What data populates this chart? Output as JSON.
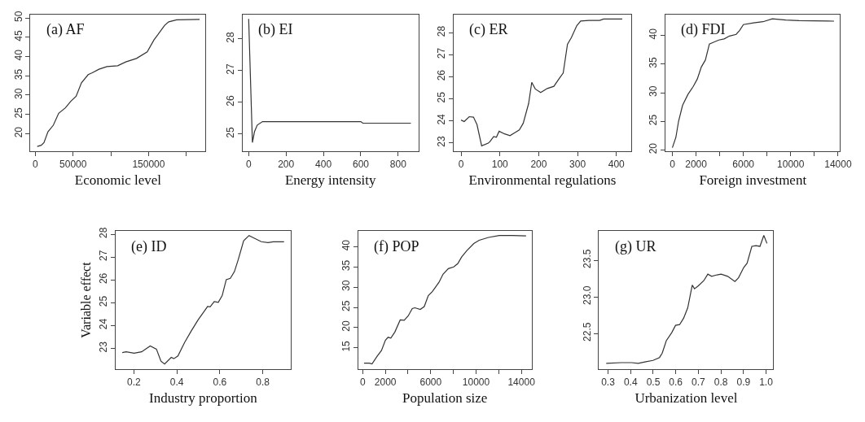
{
  "chart_data": [
    {
      "type": "line",
      "title": "(a) AF",
      "xlabel": "Economic level",
      "color": "#333333",
      "x": [
        2500,
        7800,
        11400,
        16700,
        23800,
        30900,
        39800,
        46900,
        54000,
        61100,
        70000,
        75400,
        84300,
        94900,
        109100,
        119800,
        134000,
        148200,
        157100,
        162500,
        171300,
        176700,
        187300,
        217600
      ],
      "values": [
        16.7,
        17.0,
        17.7,
        20.5,
        22.2,
        25.3,
        26.7,
        28.4,
        29.7,
        33.2,
        35.3,
        35.8,
        36.7,
        37.4,
        37.6,
        38.6,
        39.5,
        41.2,
        44.3,
        45.7,
        48.1,
        49.0,
        49.5,
        49.6
      ],
      "xlim": [
        -6400,
        225500
      ],
      "ylim": [
        15.5,
        50.9
      ],
      "xticks": [
        0,
        50000,
        {
          "value": 100000,
          "label": null
        },
        150000,
        {
          "value": 200000,
          "label": null
        }
      ],
      "yticks": [
        20,
        25,
        30,
        35,
        40,
        45,
        50
      ]
    },
    {
      "type": "line",
      "title": "(b) EI",
      "xlabel": "Energy intensity",
      "color": "#333333",
      "x": [
        0,
        20,
        31,
        46,
        74,
        600,
        611,
        868
      ],
      "values": [
        28.63,
        24.73,
        25.07,
        25.28,
        25.39,
        25.39,
        25.34,
        25.34
      ],
      "xlim": [
        -33,
        908
      ],
      "ylim": [
        24.46,
        28.77
      ],
      "xticks": [
        0,
        200,
        400,
        600,
        800
      ],
      "yticks": [
        25,
        26,
        27,
        28
      ]
    },
    {
      "type": "line",
      "title": "(c) ER",
      "xlabel": "Environmental regulations",
      "color": "#333333",
      "x": [
        0,
        8,
        21,
        32,
        41,
        53,
        70,
        74,
        84,
        91,
        98,
        112,
        126,
        139,
        150,
        160,
        174,
        182,
        191,
        205,
        222,
        239,
        253,
        263,
        274,
        284,
        298,
        308,
        329,
        357,
        367,
        415
      ],
      "values": [
        24.04,
        23.97,
        24.19,
        24.17,
        23.83,
        22.87,
        22.99,
        23.05,
        23.29,
        23.26,
        23.53,
        23.41,
        23.33,
        23.47,
        23.59,
        23.89,
        24.79,
        25.75,
        25.45,
        25.29,
        25.47,
        25.57,
        25.93,
        26.17,
        27.48,
        27.78,
        28.32,
        28.53,
        28.56,
        28.56,
        28.62,
        28.62
      ],
      "xlim": [
        -19,
        438
      ],
      "ylim": [
        22.63,
        28.83
      ],
      "xticks": [
        0,
        100,
        200,
        300,
        400
      ],
      "yticks": [
        23,
        24,
        25,
        26,
        27,
        28
      ]
    },
    {
      "type": "line",
      "title": "(d) FDI",
      "xlabel": "Foreign investment",
      "color": "#333333",
      "x": [
        0,
        295,
        521,
        861,
        1314,
        1767,
        2107,
        2447,
        2787,
        3126,
        3353,
        3919,
        4372,
        4825,
        5392,
        5686,
        6004,
        6864,
        7657,
        8450,
        9583,
        10716,
        13661
      ],
      "values": [
        20.4,
        22.2,
        25.0,
        27.8,
        29.7,
        31.1,
        32.4,
        34.5,
        35.7,
        38.5,
        38.7,
        39.2,
        39.4,
        39.9,
        40.2,
        40.9,
        41.9,
        42.2,
        42.4,
        42.9,
        42.7,
        42.6,
        42.5
      ],
      "xlim": [
        -566,
        14160
      ],
      "ylim": [
        19.81,
        43.67
      ],
      "xticks": [
        0,
        2000,
        {
          "value": 4000,
          "label": null
        },
        6000,
        {
          "value": 8000,
          "label": null
        },
        10000,
        {
          "value": 12000,
          "label": null
        },
        14000
      ],
      "yticks": [
        20,
        25,
        30,
        35,
        40
      ]
    },
    {
      "type": "line",
      "title": "(e) ID",
      "xlabel": "Industry proportion",
      "ylabel": "Variable effect",
      "color": "#333333",
      "x": [
        0.146,
        0.164,
        0.201,
        0.236,
        0.276,
        0.305,
        0.326,
        0.343,
        0.374,
        0.386,
        0.405,
        0.436,
        0.468,
        0.499,
        0.53,
        0.543,
        0.555,
        0.574,
        0.593,
        0.611,
        0.63,
        0.649,
        0.668,
        0.686,
        0.711,
        0.736,
        0.761,
        0.793,
        0.824,
        0.849,
        0.899
      ],
      "values": [
        22.82,
        22.85,
        22.79,
        22.85,
        23.11,
        22.97,
        22.44,
        22.32,
        22.61,
        22.55,
        22.67,
        23.26,
        23.78,
        24.25,
        24.66,
        24.84,
        24.82,
        25.05,
        25.02,
        25.31,
        26.01,
        26.07,
        26.36,
        26.89,
        27.71,
        27.94,
        27.82,
        27.67,
        27.63,
        27.67,
        27.67
      ],
      "xlim": [
        0.115,
        0.93
      ],
      "ylim": [
        22.09,
        28.14
      ],
      "xticks": [
        0.2,
        0.4,
        0.6,
        0.8
      ],
      "yticks": [
        23,
        24,
        25,
        26,
        27,
        28
      ]
    },
    {
      "type": "line",
      "title": "(f) POP",
      "xlabel": "Population size",
      "color": "#333333",
      "x": [
        113,
        585,
        820,
        1296,
        1650,
        2005,
        2240,
        2480,
        2835,
        3307,
        3660,
        4015,
        4370,
        4605,
        5077,
        5430,
        5785,
        6140,
        6730,
        7084,
        7556,
        8029,
        8383,
        8737,
        9210,
        9800,
        10274,
        11100,
        12046,
        13229,
        14410
      ],
      "values": [
        11.2,
        11.2,
        11.0,
        13.0,
        14.3,
        16.9,
        17.6,
        17.4,
        18.9,
        21.9,
        21.8,
        22.9,
        24.7,
        24.9,
        24.5,
        25.2,
        27.9,
        28.9,
        31.2,
        33.2,
        34.6,
        35.0,
        35.8,
        37.5,
        39.1,
        40.8,
        41.6,
        42.3,
        42.8,
        42.8,
        42.7
      ],
      "xlim": [
        -405,
        14900
      ],
      "ylim": [
        9.7,
        43.9
      ],
      "xticks": [
        0,
        2000,
        {
          "value": 4000,
          "label": null
        },
        6000,
        {
          "value": 8000,
          "label": null
        },
        10000,
        {
          "value": 12000,
          "label": null
        },
        14000
      ],
      "yticks": [
        15,
        20,
        25,
        30,
        35,
        40
      ]
    },
    {
      "type": "line",
      "title": "(g) UR",
      "xlabel": "Urbanization level",
      "color": "#333333",
      "x": [
        0.292,
        0.357,
        0.404,
        0.434,
        0.463,
        0.499,
        0.528,
        0.54,
        0.558,
        0.582,
        0.599,
        0.617,
        0.635,
        0.653,
        0.673,
        0.683,
        0.7,
        0.724,
        0.742,
        0.759,
        0.783,
        0.801,
        0.83,
        0.862,
        0.878,
        0.901,
        0.916,
        0.937,
        0.955,
        0.973,
        0.99,
        1.004
      ],
      "values": [
        22.09,
        22.1,
        22.1,
        22.09,
        22.11,
        22.13,
        22.17,
        22.23,
        22.4,
        22.51,
        22.61,
        22.62,
        22.71,
        22.85,
        23.16,
        23.11,
        23.15,
        23.22,
        23.31,
        23.28,
        23.3,
        23.31,
        23.28,
        23.21,
        23.26,
        23.4,
        23.46,
        23.69,
        23.7,
        23.69,
        23.84,
        23.73
      ],
      "xlim": [
        0.26,
        1.032
      ],
      "ylim": [
        22.01,
        23.9
      ],
      "xticks": [
        0.3,
        0.4,
        0.5,
        0.6,
        0.7,
        0.8,
        0.9,
        {
          "value": 1.0,
          "label": "1.0"
        }
      ],
      "yticks": [
        {
          "value": 22.5,
          "label": "22.5"
        },
        {
          "value": 23,
          "label": "23.0"
        },
        {
          "value": 23.5,
          "label": "23.5"
        }
      ]
    }
  ]
}
